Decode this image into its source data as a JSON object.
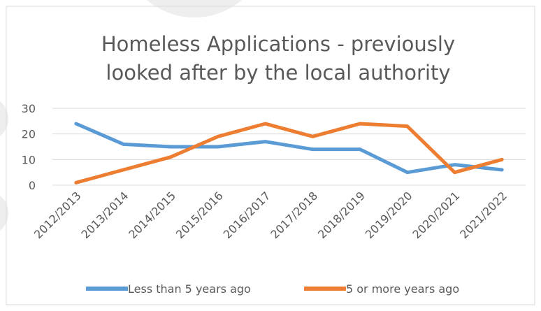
{
  "chart_data": {
    "type": "line",
    "title_lines": [
      "Homeless Applications - previously",
      "looked after by the local authority"
    ],
    "categories": [
      "2012/2013",
      "2013/2014",
      "2014/2015",
      "2015/2016",
      "2016/2017",
      "2017/2018",
      "2018/2019",
      "2019/2020",
      "2020/2021",
      "2021/2022"
    ],
    "series": [
      {
        "name": "Less than 5 years ago",
        "color": "#5B9BD5",
        "values": [
          24,
          16,
          15,
          15,
          17,
          14,
          14,
          5,
          8,
          6
        ]
      },
      {
        "name": "5 or more years ago",
        "color": "#ED7D31",
        "values": [
          1,
          6,
          11,
          19,
          24,
          19,
          24,
          23,
          5,
          10
        ]
      }
    ],
    "y_ticks": [
      "0",
      "10",
      "20",
      "30"
    ],
    "ylim": [
      0,
      30
    ],
    "grid": true,
    "legend_position": "bottom"
  }
}
